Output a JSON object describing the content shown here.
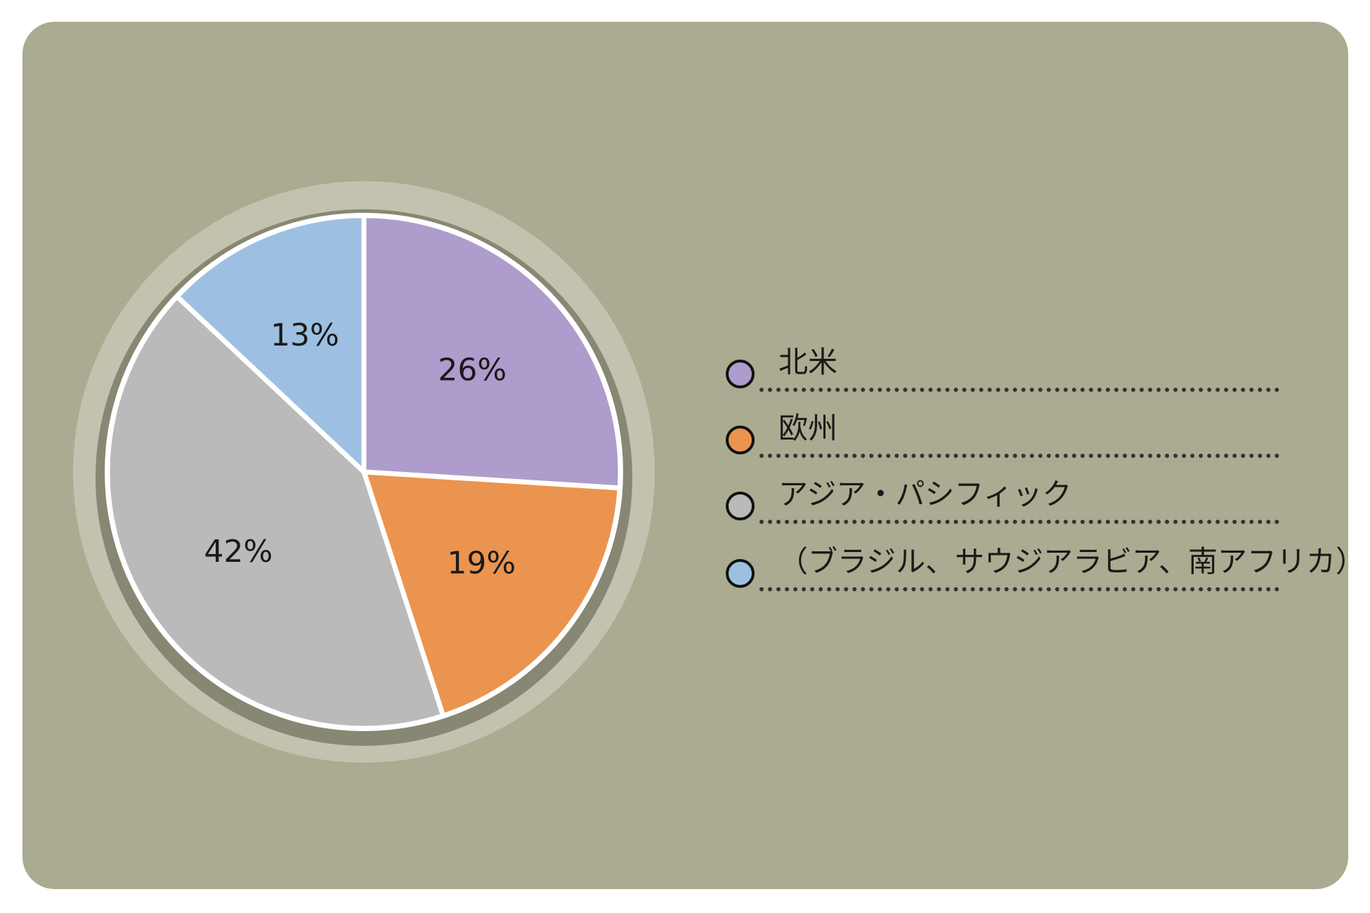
{
  "chart_data": {
    "type": "pie",
    "title": "",
    "slices": [
      {
        "label": "北米",
        "value": 26,
        "value_label": "26%",
        "color": "#ae9ccc"
      },
      {
        "label": "欧州",
        "value": 19,
        "value_label": "19%",
        "color": "#ea944f"
      },
      {
        "label": "アジア・パシフィック",
        "value": 42,
        "value_label": "42%",
        "color": "#bababa"
      },
      {
        "label": "（ブラジル、サウジアラビア、南アフリカ）",
        "value": 13,
        "value_label": "13%",
        "color": "#9dc0e2"
      }
    ],
    "start_angle": "12 o'clock",
    "direction": "clockwise",
    "legend": {
      "placement": "right"
    },
    "colors": {
      "panel_background": "#abab91",
      "slice_border": "#ffffff",
      "outer_ring": "#c2c2ae",
      "inner_shadow": "#7d7d68"
    }
  }
}
